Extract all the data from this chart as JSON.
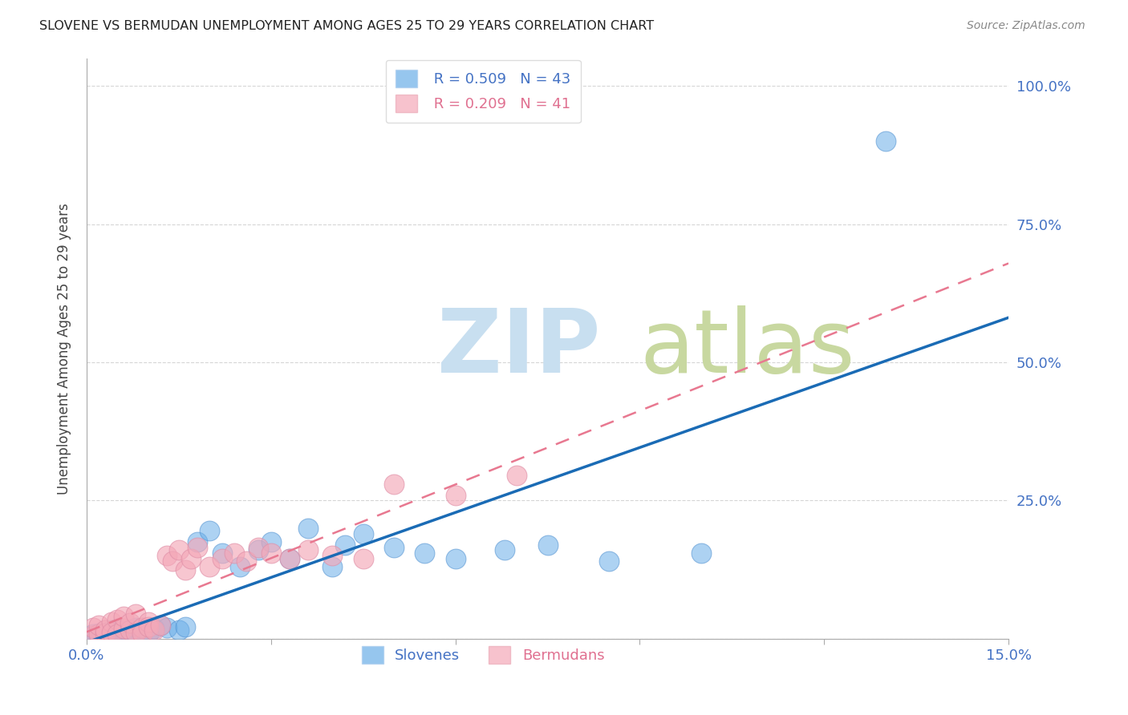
{
  "title": "SLOVENE VS BERMUDAN UNEMPLOYMENT AMONG AGES 25 TO 29 YEARS CORRELATION CHART",
  "source": "Source: ZipAtlas.com",
  "ylabel": "Unemployment Among Ages 25 to 29 years",
  "xlim": [
    0.0,
    0.15
  ],
  "ylim": [
    0.0,
    1.05
  ],
  "xticks": [
    0.0,
    0.03,
    0.06,
    0.09,
    0.12,
    0.15
  ],
  "xtick_labels": [
    "0.0%",
    "",
    "",
    "",
    "",
    "15.0%"
  ],
  "ytick_positions": [
    0.0,
    0.25,
    0.5,
    0.75,
    1.0
  ],
  "ytick_labels": [
    "",
    "25.0%",
    "50.0%",
    "75.0%",
    "100.0%"
  ],
  "slovene_R": "0.509",
  "slovene_N": "43",
  "bermudan_R": "0.209",
  "bermudan_N": "41",
  "slovene_color": "#6aaee8",
  "bermudan_color": "#f4a8b8",
  "slovene_line_color": "#1a6bb5",
  "bermudan_line_color": "#e87890",
  "background_color": "#ffffff",
  "watermark_zip": "ZIP",
  "watermark_atlas": "atlas",
  "watermark_color_zip": "#c8dff0",
  "watermark_color_atlas": "#c8d8a0",
  "grid_color": "#cccccc",
  "slovene_x": [
    0.001,
    0.001,
    0.002,
    0.002,
    0.003,
    0.003,
    0.004,
    0.004,
    0.005,
    0.005,
    0.005,
    0.006,
    0.006,
    0.007,
    0.007,
    0.008,
    0.008,
    0.009,
    0.01,
    0.011,
    0.012,
    0.013,
    0.015,
    0.016,
    0.018,
    0.02,
    0.022,
    0.025,
    0.028,
    0.03,
    0.033,
    0.036,
    0.04,
    0.042,
    0.045,
    0.05,
    0.055,
    0.06,
    0.068,
    0.075,
    0.085,
    0.1,
    0.13
  ],
  "slovene_y": [
    0.005,
    0.008,
    0.004,
    0.01,
    0.006,
    0.012,
    0.008,
    0.015,
    0.005,
    0.01,
    0.018,
    0.007,
    0.014,
    0.009,
    0.016,
    0.012,
    0.02,
    0.015,
    0.01,
    0.018,
    0.025,
    0.02,
    0.015,
    0.022,
    0.175,
    0.195,
    0.155,
    0.13,
    0.16,
    0.175,
    0.145,
    0.2,
    0.13,
    0.17,
    0.19,
    0.165,
    0.155,
    0.145,
    0.16,
    0.17,
    0.14,
    0.155,
    0.9
  ],
  "bermudan_x": [
    0.001,
    0.001,
    0.002,
    0.002,
    0.003,
    0.003,
    0.004,
    0.004,
    0.005,
    0.005,
    0.006,
    0.006,
    0.007,
    0.007,
    0.008,
    0.008,
    0.009,
    0.009,
    0.01,
    0.01,
    0.011,
    0.012,
    0.013,
    0.014,
    0.015,
    0.016,
    0.017,
    0.018,
    0.02,
    0.022,
    0.024,
    0.026,
    0.028,
    0.03,
    0.033,
    0.036,
    0.04,
    0.045,
    0.05,
    0.06,
    0.07
  ],
  "bermudan_y": [
    0.005,
    0.02,
    0.008,
    0.025,
    0.01,
    0.015,
    0.03,
    0.012,
    0.035,
    0.008,
    0.018,
    0.04,
    0.015,
    0.028,
    0.012,
    0.045,
    0.02,
    0.01,
    0.03,
    0.022,
    0.015,
    0.025,
    0.15,
    0.14,
    0.16,
    0.125,
    0.145,
    0.165,
    0.13,
    0.145,
    0.155,
    0.14,
    0.165,
    0.155,
    0.145,
    0.16,
    0.15,
    0.145,
    0.28,
    0.26,
    0.295
  ]
}
